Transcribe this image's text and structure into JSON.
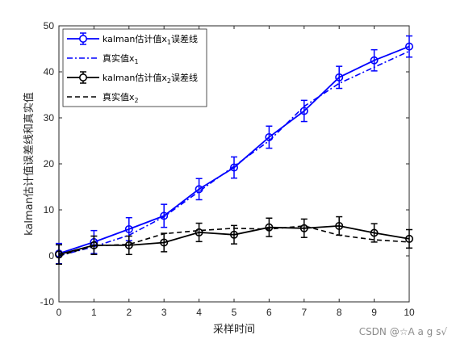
{
  "chart_data": {
    "type": "line",
    "xlabel": "采样时间",
    "ylabel": "kalman估计值误差线和真实值",
    "xlim": [
      0,
      10
    ],
    "ylim": [
      -10,
      50
    ],
    "xticks": [
      0,
      1,
      2,
      3,
      4,
      5,
      6,
      7,
      8,
      9,
      10
    ],
    "yticks": [
      -10,
      0,
      10,
      20,
      30,
      40,
      50
    ],
    "grid": false,
    "legend_position": "top-left",
    "x": [
      0,
      1,
      2,
      3,
      4,
      5,
      6,
      7,
      8,
      9,
      10
    ],
    "series": [
      {
        "name_parts": [
          "kalman估计值x",
          "1",
          "误差线"
        ],
        "style": "solid-circle-errorbar",
        "color": "#0000ff",
        "values": [
          0.5,
          3.0,
          5.8,
          8.7,
          14.5,
          19.2,
          25.8,
          31.5,
          38.8,
          42.5,
          45.5
        ],
        "errors": [
          2.2,
          2.5,
          2.5,
          2.5,
          2.3,
          2.3,
          2.4,
          2.3,
          2.4,
          2.3,
          2.3
        ]
      },
      {
        "name_parts": [
          "真实值x",
          "1",
          ""
        ],
        "style": "dashdot",
        "color": "#0000ff",
        "values": [
          0.0,
          2.0,
          4.5,
          8.5,
          14.0,
          19.5,
          25.0,
          32.5,
          37.5,
          41.0,
          44.5
        ]
      },
      {
        "name_parts": [
          "kalman估计值x",
          "2",
          "误差线"
        ],
        "style": "solid-circle-errorbar",
        "color": "#000000",
        "values": [
          0.3,
          2.3,
          2.3,
          2.9,
          5.1,
          4.6,
          6.2,
          6.0,
          6.5,
          5.0,
          3.7
        ],
        "errors": [
          2.1,
          2.0,
          2.0,
          2.0,
          2.0,
          2.0,
          2.0,
          2.0,
          2.0,
          2.0,
          2.0
        ]
      },
      {
        "name_parts": [
          "真实值x",
          "2",
          ""
        ],
        "style": "dashed",
        "color": "#000000",
        "values": [
          0.0,
          2.2,
          2.5,
          4.8,
          5.5,
          6.0,
          5.8,
          6.5,
          4.5,
          3.5,
          3.0
        ]
      }
    ]
  },
  "watermark": "CSDN @☆A a g s√"
}
